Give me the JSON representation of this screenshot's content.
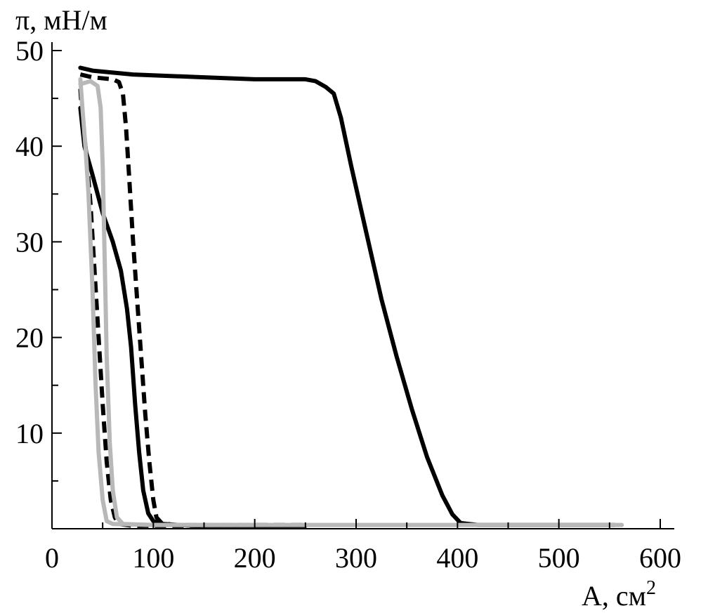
{
  "chart_data": {
    "type": "line",
    "title": "",
    "ylabel": "π, мН/м",
    "xlabel_main": "A, см",
    "xlabel_sup": "2",
    "xlim": [
      0,
      600
    ],
    "ylim": [
      0,
      50
    ],
    "x_major_ticks": [
      0,
      100,
      200,
      300,
      400,
      500,
      600
    ],
    "x_minor_ticks": [
      50,
      150,
      250,
      350,
      450,
      550
    ],
    "y_major_ticks": [
      10,
      20,
      30,
      40,
      50
    ],
    "y_minor_ticks": [
      5,
      15,
      25,
      35,
      45
    ],
    "grid": false,
    "legend": "none",
    "colors": {
      "black": "#000000",
      "gray": "#b8b8b8"
    },
    "series": [
      {
        "style": "solid",
        "color": "black",
        "points": [
          [
            28,
            48.2
          ],
          [
            40,
            47.9
          ],
          [
            80,
            47.5
          ],
          [
            150,
            47.2
          ],
          [
            200,
            47.0
          ],
          [
            250,
            47.0
          ],
          [
            260,
            46.8
          ],
          [
            270,
            46.2
          ],
          [
            278,
            45.5
          ],
          [
            285,
            43
          ],
          [
            295,
            38
          ],
          [
            310,
            31
          ],
          [
            325,
            24
          ],
          [
            340,
            18
          ],
          [
            355,
            12.5
          ],
          [
            370,
            7.5
          ],
          [
            385,
            3.5
          ],
          [
            395,
            1.5
          ],
          [
            403,
            0.6
          ],
          [
            420,
            0.4
          ],
          [
            500,
            0.4
          ],
          [
            555,
            0.4
          ]
        ]
      },
      {
        "style": "dashed",
        "color": "black",
        "points": [
          [
            28,
            47.5
          ],
          [
            40,
            47.2
          ],
          [
            60,
            47.0
          ],
          [
            66,
            46.7
          ],
          [
            70,
            45.5
          ],
          [
            73,
            42
          ],
          [
            76,
            37
          ],
          [
            80,
            30
          ],
          [
            84,
            24
          ],
          [
            88,
            18
          ],
          [
            92,
            12
          ],
          [
            96,
            7
          ],
          [
            100,
            3
          ],
          [
            103,
            1.2
          ],
          [
            108,
            0.6
          ],
          [
            120,
            0.4
          ],
          [
            250,
            0.4
          ]
        ]
      },
      {
        "style": "solid",
        "color": "black",
        "points": [
          [
            28,
            44
          ],
          [
            32,
            40
          ],
          [
            40,
            37
          ],
          [
            50,
            33
          ],
          [
            60,
            30
          ],
          [
            68,
            27
          ],
          [
            74,
            23
          ],
          [
            78,
            19
          ],
          [
            82,
            13
          ],
          [
            86,
            8
          ],
          [
            90,
            4
          ],
          [
            95,
            1.6
          ],
          [
            100,
            0.8
          ],
          [
            110,
            0.5
          ],
          [
            140,
            0.3
          ],
          [
            250,
            0.3
          ]
        ]
      },
      {
        "style": "dashed",
        "color": "black",
        "points": [
          [
            28,
            46
          ],
          [
            30,
            43
          ],
          [
            34,
            39
          ],
          [
            38,
            34
          ],
          [
            42,
            27
          ],
          [
            46,
            20
          ],
          [
            50,
            13
          ],
          [
            54,
            7
          ],
          [
            58,
            3
          ],
          [
            62,
            1.2
          ],
          [
            66,
            0.5
          ],
          [
            80,
            0.3
          ],
          [
            150,
            0.3
          ]
        ]
      },
      {
        "style": "solid",
        "color": "gray",
        "points": [
          [
            28,
            47
          ],
          [
            30,
            44
          ],
          [
            33,
            40
          ],
          [
            36,
            35
          ],
          [
            40,
            25
          ],
          [
            43,
            15
          ],
          [
            46,
            8
          ],
          [
            50,
            3
          ],
          [
            54,
            0.8
          ],
          [
            60,
            0.5
          ],
          [
            100,
            0.4
          ],
          [
            300,
            0.4
          ],
          [
            450,
            0.4
          ],
          [
            562,
            0.4
          ]
        ]
      },
      {
        "style": "solid",
        "color": "gray",
        "points": [
          [
            28,
            46.5
          ],
          [
            38,
            46.8
          ],
          [
            45,
            46.3
          ],
          [
            48,
            44
          ],
          [
            50,
            38
          ],
          [
            52,
            28
          ],
          [
            54,
            18
          ],
          [
            57,
            9
          ],
          [
            60,
            4
          ],
          [
            64,
            1.2
          ],
          [
            70,
            0.5
          ],
          [
            100,
            0.4
          ],
          [
            200,
            0.4
          ]
        ]
      }
    ]
  }
}
